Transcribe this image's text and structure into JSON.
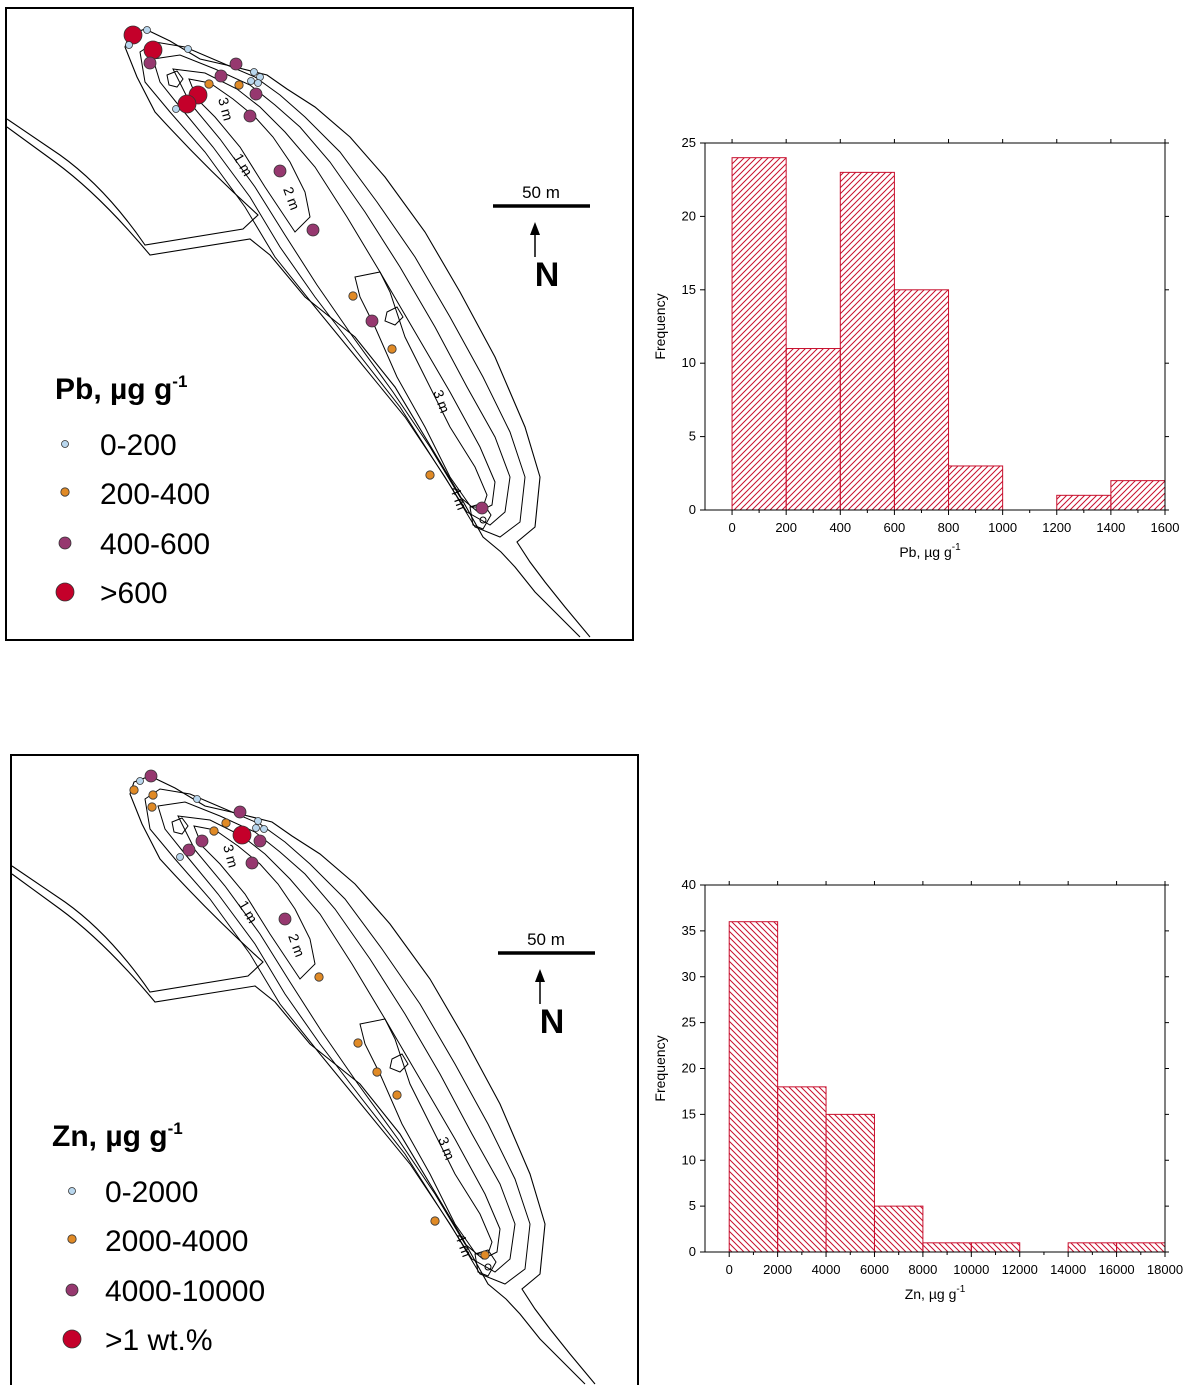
{
  "colors": {
    "blue": "#b9d7ee",
    "orange": "#e08a26",
    "purple": "#96386f",
    "red": "#c4002a",
    "hist": "#c8102e"
  },
  "maps": [
    {
      "element": "Pb",
      "title_main": "Pb, µg g",
      "title_sup": "-1",
      "scale_label": "50 m",
      "north_label": "N",
      "contours": [
        "1 m",
        "2 m",
        "3 m",
        "3 m",
        "4 m"
      ],
      "legend": [
        {
          "label": "0-200",
          "class": "blue"
        },
        {
          "label": "200-400",
          "class": "orange"
        },
        {
          "label": "400-600",
          "class": "purple"
        },
        {
          "label": ">600",
          "class": "red"
        }
      ]
    },
    {
      "element": "Zn",
      "title_main": "Zn, µg g",
      "title_sup": "-1",
      "scale_label": "50 m",
      "north_label": "N",
      "contours": [
        "1 m",
        "2 m",
        "3 m",
        "3 m",
        "4 m"
      ],
      "legend": [
        {
          "label": "0-2000",
          "class": "blue"
        },
        {
          "label": "2000-4000",
          "class": "orange"
        },
        {
          "label": "4000-10000",
          "class": "purple"
        },
        {
          "label": ">1 wt.%",
          "class": "red"
        }
      ]
    }
  ],
  "chart_data": [
    {
      "type": "bar",
      "ylabel": "Frequency",
      "xlabel_main": "Pb, µg g",
      "xlabel_sup": "-1",
      "bin_edges": [
        0,
        200,
        400,
        600,
        800,
        1000,
        1200,
        1400,
        1600
      ],
      "values": [
        24,
        11,
        23,
        15,
        3,
        0,
        1,
        2
      ],
      "x_ticks": [
        0,
        200,
        400,
        600,
        800,
        1000,
        1200,
        1400,
        1600
      ],
      "y_ticks": [
        0,
        5,
        10,
        15,
        20,
        25
      ],
      "xlim": [
        -100,
        1600
      ],
      "ylim": [
        0,
        25
      ]
    },
    {
      "type": "bar",
      "ylabel": "Frequency",
      "xlabel_main": "Zn, µg g",
      "xlabel_sup": "-1",
      "bin_edges": [
        0,
        2000,
        4000,
        6000,
        8000,
        10000,
        12000,
        14000,
        16000,
        18000
      ],
      "values": [
        36,
        18,
        15,
        5,
        1,
        1,
        0,
        1,
        1
      ],
      "x_ticks": [
        0,
        2000,
        4000,
        6000,
        8000,
        10000,
        12000,
        14000,
        16000,
        18000
      ],
      "y_ticks": [
        0,
        5,
        10,
        15,
        20,
        25,
        30,
        35,
        40
      ],
      "xlim": [
        -1000,
        18000
      ],
      "ylim": [
        0,
        40
      ]
    }
  ]
}
